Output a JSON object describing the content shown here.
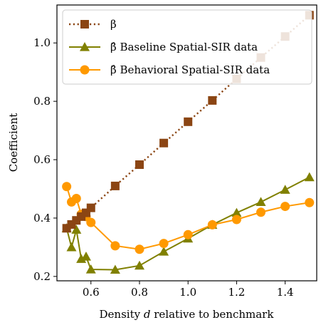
{
  "chart_data": {
    "type": "line",
    "xlabel": "Density d relative to benchmark",
    "ylabel": "Coefficient",
    "xlim": [
      0.46,
      1.53
    ],
    "ylim": [
      0.185,
      1.13
    ],
    "xticks": [
      0.6,
      0.8,
      1.0,
      1.2,
      1.4
    ],
    "xtick_labels": [
      "0.6",
      "0.8",
      "1.0",
      "1.2",
      "1.4"
    ],
    "yticks": [
      0.2,
      0.4,
      0.6,
      0.8,
      1.0
    ],
    "ytick_labels": [
      "0.2",
      "0.4",
      "0.6",
      "0.8",
      "1.0"
    ],
    "grid": false,
    "legend_position": "top-left",
    "series": [
      {
        "name": "β",
        "marker": "square",
        "line_style": "dotted",
        "color": "#8B4513",
        "x": [
          0.5,
          0.52,
          0.54,
          0.56,
          0.58,
          0.6,
          0.7,
          0.8,
          0.9,
          1.0,
          1.1,
          1.2,
          1.3,
          1.4,
          1.5
        ],
        "y": [
          0.365,
          0.378,
          0.392,
          0.405,
          0.418,
          0.435,
          0.51,
          0.583,
          0.657,
          0.73,
          0.803,
          0.877,
          0.95,
          1.022,
          1.095
        ]
      },
      {
        "name": "β̂ Baseline Spatial-SIR data",
        "marker": "triangle",
        "line_style": "solid",
        "color": "#808000",
        "x": [
          0.5,
          0.52,
          0.54,
          0.56,
          0.58,
          0.6,
          0.7,
          0.8,
          0.9,
          1.0,
          1.1,
          1.2,
          1.3,
          1.4,
          1.5
        ],
        "y": [
          0.365,
          0.3,
          0.36,
          0.26,
          0.268,
          0.224,
          0.223,
          0.237,
          0.285,
          0.33,
          0.377,
          0.418,
          0.455,
          0.497,
          0.54
        ]
      },
      {
        "name": "β̂ Behavioral Spatial-SIR data",
        "marker": "circle",
        "line_style": "solid",
        "color": "#FF9900",
        "x": [
          0.5,
          0.52,
          0.54,
          0.56,
          0.58,
          0.6,
          0.7,
          0.8,
          0.9,
          1.0,
          1.1,
          1.2,
          1.3,
          1.4,
          1.5
        ],
        "y": [
          0.508,
          0.455,
          0.467,
          0.413,
          0.405,
          0.385,
          0.305,
          0.293,
          0.313,
          0.343,
          0.377,
          0.395,
          0.42,
          0.44,
          0.453
        ]
      }
    ]
  }
}
